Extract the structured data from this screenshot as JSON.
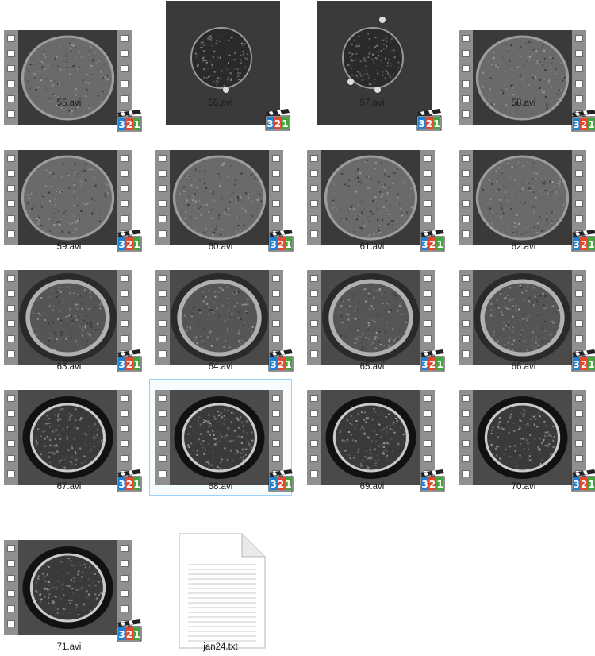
{
  "files": [
    {
      "name": "55.avi",
      "style": "film",
      "variant": "bright"
    },
    {
      "name": "56.avi",
      "style": "raw",
      "variant": "small-dot-bottom"
    },
    {
      "name": "57.avi",
      "style": "raw",
      "variant": "small-dots-both"
    },
    {
      "name": "58.avi",
      "style": "film",
      "variant": "bright"
    },
    {
      "name": "59.avi",
      "style": "film",
      "variant": "bright"
    },
    {
      "name": "60.avi",
      "style": "film",
      "variant": "bright"
    },
    {
      "name": "61.avi",
      "style": "film",
      "variant": "bright"
    },
    {
      "name": "62.avi",
      "style": "film",
      "variant": "bright"
    },
    {
      "name": "63.avi",
      "style": "film",
      "variant": "ring"
    },
    {
      "name": "64.avi",
      "style": "film",
      "variant": "ring"
    },
    {
      "name": "65.avi",
      "style": "film",
      "variant": "ring"
    },
    {
      "name": "66.avi",
      "style": "film",
      "variant": "ring"
    },
    {
      "name": "67.avi",
      "style": "film",
      "variant": "dark-ring"
    },
    {
      "name": "68.avi",
      "style": "film",
      "variant": "dark-ring",
      "selected": true
    },
    {
      "name": "69.avi",
      "style": "film",
      "variant": "dark-ring"
    },
    {
      "name": "70.avi",
      "style": "film",
      "variant": "dark-ring"
    },
    {
      "name": "71.avi",
      "style": "film",
      "variant": "dark-ring"
    },
    {
      "name": "jan24.txt",
      "style": "text"
    }
  ],
  "icons": {
    "video_badge": "media-player-classic-321-icon",
    "text_file": "text-document-icon"
  },
  "colors": {
    "selection_border": "#99d1ff",
    "label_text": "#1a1a1a",
    "background": "#ffffff"
  }
}
